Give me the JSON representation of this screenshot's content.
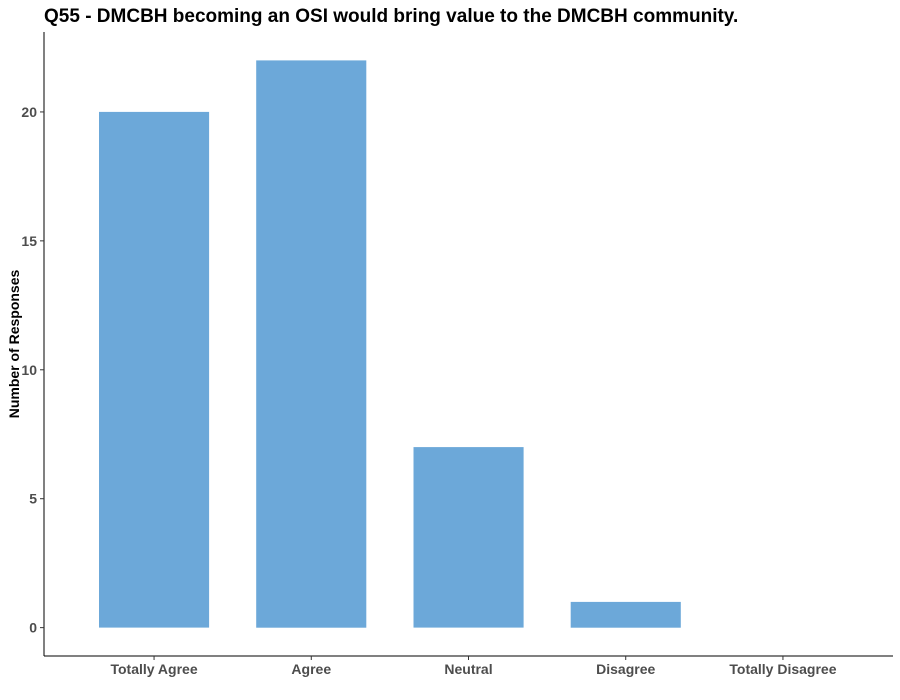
{
  "chart_data": {
    "type": "bar",
    "title": "Q55 - DMCBH becoming an OSI would bring value to the DMCBH community.",
    "xlabel": "",
    "ylabel": "Number of Responses",
    "categories": [
      "Totally Agree",
      "Agree",
      "Neutral",
      "Disagree",
      "Totally Disagree"
    ],
    "values": [
      20,
      22,
      7,
      1,
      0
    ],
    "yticks": [
      0,
      5,
      10,
      15,
      20
    ],
    "ylim": [
      -1.1,
      23.1
    ],
    "grid": false,
    "legend": "none",
    "bar_color": "#6CA8D9",
    "axis_color": "#000000"
  }
}
